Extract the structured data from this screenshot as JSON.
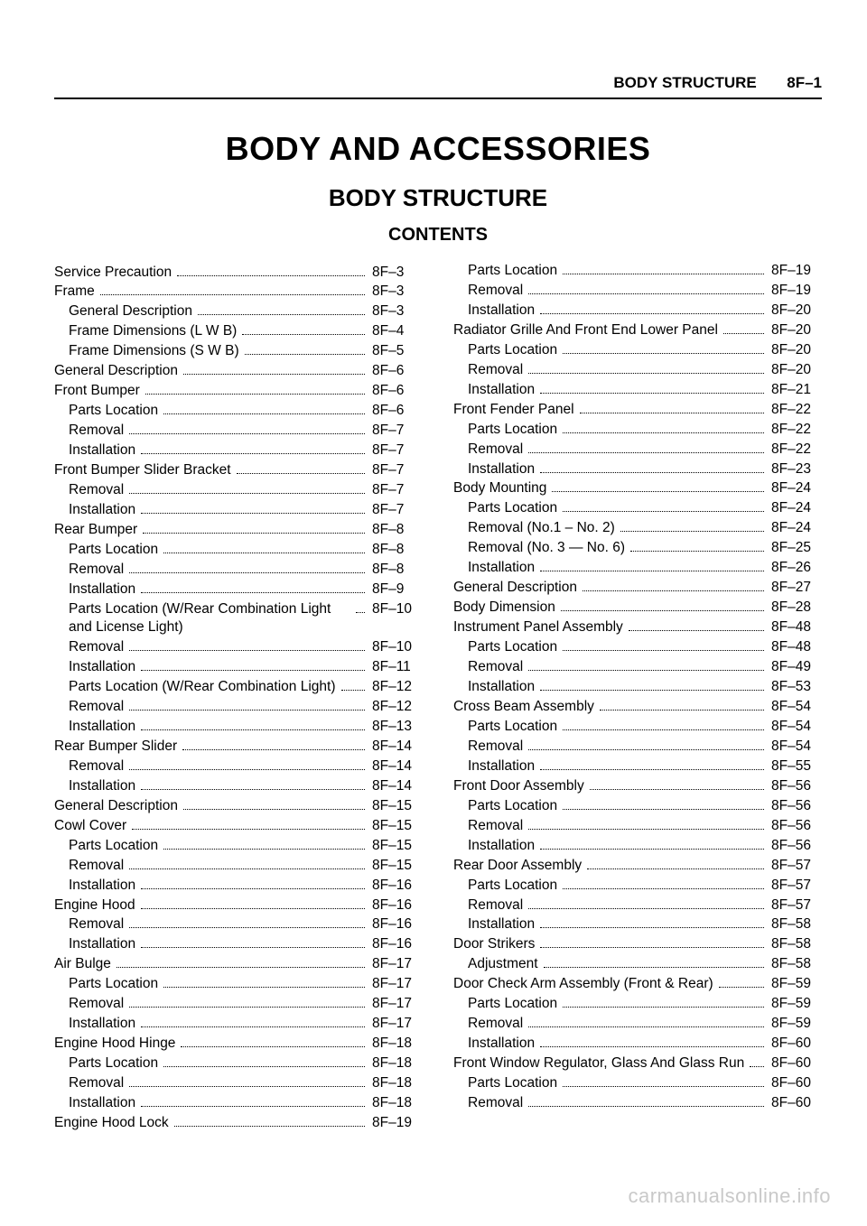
{
  "header": {
    "section": "BODY STRUCTURE",
    "page_code": "8F–1"
  },
  "title": "BODY AND ACCESSORIES",
  "subtitle": "BODY STRUCTURE",
  "contents_label": "CONTENTS",
  "watermark": "carmanualsonline.info",
  "toc": [
    {
      "label": "Service Precaution",
      "page": "8F–3",
      "indent": 0
    },
    {
      "label": "Frame",
      "page": "8F–3",
      "indent": 0
    },
    {
      "label": "General Description",
      "page": "8F–3",
      "indent": 1
    },
    {
      "label": "Frame Dimensions (L W B)",
      "page": "8F–4",
      "indent": 1
    },
    {
      "label": "Frame Dimensions (S W B)",
      "page": "8F–5",
      "indent": 1
    },
    {
      "label": "General Description",
      "page": "8F–6",
      "indent": 0
    },
    {
      "label": "Front Bumper",
      "page": "8F–6",
      "indent": 0
    },
    {
      "label": "Parts Location",
      "page": "8F–6",
      "indent": 1
    },
    {
      "label": "Removal",
      "page": "8F–7",
      "indent": 1
    },
    {
      "label": "Installation",
      "page": "8F–7",
      "indent": 1
    },
    {
      "label": "Front Bumper Slider Bracket",
      "page": "8F–7",
      "indent": 0
    },
    {
      "label": "Removal",
      "page": "8F–7",
      "indent": 1
    },
    {
      "label": "Installation",
      "page": "8F–7",
      "indent": 1
    },
    {
      "label": "Rear Bumper",
      "page": "8F–8",
      "indent": 0
    },
    {
      "label": "Parts Location",
      "page": "8F–8",
      "indent": 1
    },
    {
      "label": "Removal",
      "page": "8F–8",
      "indent": 1
    },
    {
      "label": "Installation",
      "page": "8F–9",
      "indent": 1
    },
    {
      "label": "Parts Location (W/Rear Combination Light and License Light)",
      "page": "8F–10",
      "indent": 1
    },
    {
      "label": "Removal",
      "page": "8F–10",
      "indent": 1
    },
    {
      "label": "Installation",
      "page": "8F–11",
      "indent": 1
    },
    {
      "label": "Parts Location (W/Rear Combination Light)",
      "page": "8F–12",
      "indent": 1
    },
    {
      "label": "Removal",
      "page": "8F–12",
      "indent": 1
    },
    {
      "label": "Installation",
      "page": "8F–13",
      "indent": 1
    },
    {
      "label": "Rear Bumper Slider",
      "page": "8F–14",
      "indent": 0
    },
    {
      "label": "Removal",
      "page": "8F–14",
      "indent": 1
    },
    {
      "label": "Installation",
      "page": "8F–14",
      "indent": 1
    },
    {
      "label": "General Description",
      "page": "8F–15",
      "indent": 0
    },
    {
      "label": "Cowl Cover",
      "page": "8F–15",
      "indent": 0
    },
    {
      "label": "Parts Location",
      "page": "8F–15",
      "indent": 1
    },
    {
      "label": "Removal",
      "page": "8F–15",
      "indent": 1
    },
    {
      "label": "Installation",
      "page": "8F–16",
      "indent": 1
    },
    {
      "label": "Engine Hood",
      "page": "8F–16",
      "indent": 0
    },
    {
      "label": "Removal",
      "page": "8F–16",
      "indent": 1
    },
    {
      "label": "Installation",
      "page": "8F–16",
      "indent": 1
    },
    {
      "label": "Air Bulge",
      "page": "8F–17",
      "indent": 0
    },
    {
      "label": "Parts Location",
      "page": "8F–17",
      "indent": 1
    },
    {
      "label": "Removal",
      "page": "8F–17",
      "indent": 1
    },
    {
      "label": "Installation",
      "page": "8F–17",
      "indent": 1
    },
    {
      "label": "Engine Hood Hinge",
      "page": "8F–18",
      "indent": 0
    },
    {
      "label": "Parts Location",
      "page": "8F–18",
      "indent": 1
    },
    {
      "label": "Removal",
      "page": "8F–18",
      "indent": 1
    },
    {
      "label": "Installation",
      "page": "8F–18",
      "indent": 1
    },
    {
      "label": "Engine Hood Lock",
      "page": "8F–19",
      "indent": 0
    },
    {
      "label": "Parts Location",
      "page": "8F–19",
      "indent": 1
    },
    {
      "label": "Removal",
      "page": "8F–19",
      "indent": 1
    },
    {
      "label": "Installation",
      "page": "8F–20",
      "indent": 1
    },
    {
      "label": "Radiator Grille And Front End Lower Panel",
      "page": "8F–20",
      "indent": 0
    },
    {
      "label": "Parts Location",
      "page": "8F–20",
      "indent": 1
    },
    {
      "label": "Removal",
      "page": "8F–20",
      "indent": 1
    },
    {
      "label": "Installation",
      "page": "8F–21",
      "indent": 1
    },
    {
      "label": "Front Fender Panel",
      "page": "8F–22",
      "indent": 0
    },
    {
      "label": "Parts Location",
      "page": "8F–22",
      "indent": 1
    },
    {
      "label": "Removal",
      "page": "8F–22",
      "indent": 1
    },
    {
      "label": "Installation",
      "page": "8F–23",
      "indent": 1
    },
    {
      "label": "Body Mounting",
      "page": "8F–24",
      "indent": 0
    },
    {
      "label": "Parts Location",
      "page": "8F–24",
      "indent": 1
    },
    {
      "label": "Removal (No.1 – No. 2)",
      "page": "8F–24",
      "indent": 1
    },
    {
      "label": "Removal (No. 3 — No. 6)",
      "page": "8F–25",
      "indent": 1
    },
    {
      "label": "Installation",
      "page": "8F–26",
      "indent": 1
    },
    {
      "label": "General Description",
      "page": "8F–27",
      "indent": 0
    },
    {
      "label": "Body Dimension",
      "page": "8F–28",
      "indent": 0
    },
    {
      "label": "Instrument Panel Assembly",
      "page": "8F–48",
      "indent": 0
    },
    {
      "label": "Parts Location",
      "page": "8F–48",
      "indent": 1
    },
    {
      "label": "Removal",
      "page": "8F–49",
      "indent": 1
    },
    {
      "label": "Installation",
      "page": "8F–53",
      "indent": 1
    },
    {
      "label": "Cross Beam Assembly",
      "page": "8F–54",
      "indent": 0
    },
    {
      "label": "Parts Location",
      "page": "8F–54",
      "indent": 1
    },
    {
      "label": "Removal",
      "page": "8F–54",
      "indent": 1
    },
    {
      "label": "Installation",
      "page": "8F–55",
      "indent": 1
    },
    {
      "label": "Front Door Assembly",
      "page": "8F–56",
      "indent": 0
    },
    {
      "label": "Parts Location",
      "page": "8F–56",
      "indent": 1
    },
    {
      "label": "Removal",
      "page": "8F–56",
      "indent": 1
    },
    {
      "label": "Installation",
      "page": "8F–56",
      "indent": 1
    },
    {
      "label": "Rear Door Assembly",
      "page": "8F–57",
      "indent": 0
    },
    {
      "label": "Parts Location",
      "page": "8F–57",
      "indent": 1
    },
    {
      "label": "Removal",
      "page": "8F–57",
      "indent": 1
    },
    {
      "label": "Installation",
      "page": "8F–58",
      "indent": 1
    },
    {
      "label": "Door Strikers",
      "page": "8F–58",
      "indent": 0
    },
    {
      "label": "Adjustment",
      "page": "8F–58",
      "indent": 1
    },
    {
      "label": "Door Check Arm Assembly (Front & Rear)",
      "page": "8F–59",
      "indent": 0
    },
    {
      "label": "Parts Location",
      "page": "8F–59",
      "indent": 1
    },
    {
      "label": "Removal",
      "page": "8F–59",
      "indent": 1
    },
    {
      "label": "Installation",
      "page": "8F–60",
      "indent": 1
    },
    {
      "label": "Front Window Regulator, Glass And Glass Run",
      "page": "8F–60",
      "indent": 0
    },
    {
      "label": "Parts Location",
      "page": "8F–60",
      "indent": 1
    },
    {
      "label": "Removal",
      "page": "8F–60",
      "indent": 1
    }
  ]
}
